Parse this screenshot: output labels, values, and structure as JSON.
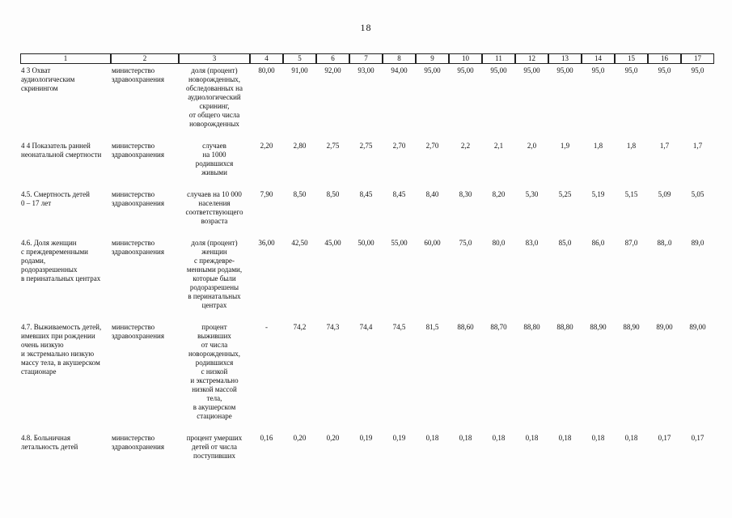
{
  "page": {
    "number": "18"
  },
  "table": {
    "headers": [
      "1",
      "2",
      "3",
      "4",
      "5",
      "6",
      "7",
      "8",
      "9",
      "10",
      "11",
      "12",
      "13",
      "14",
      "15",
      "16",
      "17"
    ],
    "rows": [
      {
        "name": "4 3 Охват\nаудиологическим\nскринингом",
        "ministry": "министерство\nздравоохранения",
        "description": "доля (процент)\nноворожденных,\nобследованных на\nаудиологический\nскрининг,\nот общего числа\nноворожденных",
        "values": [
          "80,00",
          "91,00",
          "92,00",
          "93,00",
          "94,00",
          "95,00",
          "95,00",
          "95,00",
          "95,00",
          "95,00",
          "95,0",
          "95,0",
          "95,0",
          "95,0"
        ]
      },
      {
        "name": "4 4 Показатель ранней\nнеонатальной смертности",
        "ministry": "министерство\nздравоохранения",
        "description": "случаев\nна 1000\nродившихся\nживыми",
        "values": [
          "2,20",
          "2,80",
          "2,75",
          "2,75",
          "2,70",
          "2,70",
          "2,2",
          "2,1",
          "2,0",
          "1,9",
          "1,8",
          "1,8",
          "1,7",
          "1,7"
        ]
      },
      {
        "name": "4.5. Смертность детей\n0 – 17 лет",
        "ministry": "министерство\nздравоохранения",
        "description": "случаев на 10 000\nнаселения\nсоответствующего\nвозраста",
        "values": [
          "7,90",
          "8,50",
          "8,50",
          "8,45",
          "8,45",
          "8,40",
          "8,30",
          "8,20",
          "5,30",
          "5,25",
          "5,19",
          "5,15",
          "5,09",
          "5,05"
        ]
      },
      {
        "name": "4.6. Доля женщин\nс преждевременными\nродами,\nродоразрешенных\nв перинатальных центрах",
        "ministry": "министерство\nздравоохранения",
        "description": "доля (процент)\nженщин\nс преждевре-\nменными родами,\nкоторые были\nродоразрешены\nв перинатальных\nцентрах",
        "values": [
          "36,00",
          "42,50",
          "45,00",
          "50,00",
          "55,00",
          "60,00",
          "75,0",
          "80,0",
          "83,0",
          "85,0",
          "86,0",
          "87,0",
          "88,.0",
          "89,0"
        ]
      },
      {
        "name": "4.7. Выживаемость детей,\nимевших при рождении\nочень низкую\nи экстремально низкую\nмассу тела, в акушерском\nстационаре",
        "ministry": "министерство\nздравоохранения",
        "description": "процент\nвыживших\nот числа\nноворожденных,\nродившихся\nс низкой\nи экстремально\nнизкой массой\nтела,\nв акушерском\nстационаре",
        "values": [
          "-",
          "74,2",
          "74,3",
          "74,4",
          "74,5",
          "81,5",
          "88,60",
          "88,70",
          "88,80",
          "88,80",
          "88,90",
          "88,90",
          "89,00",
          "89,00"
        ]
      },
      {
        "name": "4.8. Больничная\nлетальность детей",
        "ministry": "министерство\nздравоохранения",
        "description": "процент умерших\nдетей от числа\nпоступивших",
        "values": [
          "0,16",
          "0,20",
          "0,20",
          "0,19",
          "0,19",
          "0,18",
          "0,18",
          "0,18",
          "0,18",
          "0,18",
          "0,18",
          "0,18",
          "0,17",
          "0,17"
        ]
      }
    ]
  }
}
